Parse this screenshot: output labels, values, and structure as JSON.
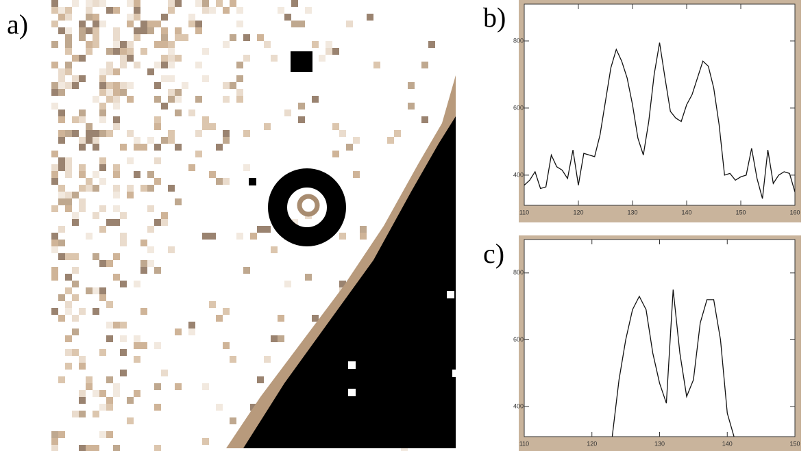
{
  "panel_a": {
    "label": "a)"
  },
  "chart_data": [
    {
      "type": "line",
      "label": "b)",
      "color": "#111111",
      "x": [
        110,
        111,
        112,
        113,
        114,
        115,
        116,
        117,
        118,
        119,
        120,
        121,
        122,
        123,
        124,
        125,
        126,
        127,
        128,
        129,
        130,
        131,
        132,
        133,
        134,
        135,
        136,
        137,
        138,
        139,
        140,
        141,
        142,
        143,
        144,
        145,
        146,
        147,
        148,
        149,
        150,
        151,
        152,
        153,
        154,
        155,
        156,
        157,
        158,
        159,
        160
      ],
      "values": [
        370,
        385,
        410,
        360,
        365,
        460,
        425,
        415,
        390,
        475,
        370,
        465,
        460,
        455,
        520,
        620,
        720,
        775,
        740,
        690,
        610,
        510,
        460,
        560,
        700,
        795,
        690,
        590,
        570,
        560,
        610,
        640,
        690,
        740,
        725,
        660,
        550,
        400,
        405,
        385,
        395,
        400,
        480,
        390,
        330,
        475,
        375,
        400,
        410,
        405,
        350
      ],
      "xlim": [
        110,
        160
      ],
      "xticks": [
        110,
        120,
        130,
        140,
        150,
        160
      ],
      "ylim": [
        310,
        910
      ],
      "yticks": [
        400,
        600,
        800
      ]
    },
    {
      "type": "line",
      "label": "c)",
      "color": "#111111",
      "x": [
        123,
        124,
        125,
        126,
        127,
        128,
        129,
        130,
        131,
        132,
        133,
        134,
        135,
        136,
        137,
        138,
        139,
        140,
        141
      ],
      "values": [
        310,
        480,
        600,
        690,
        730,
        690,
        560,
        470,
        410,
        750,
        560,
        430,
        480,
        650,
        720,
        720,
        600,
        380,
        310
      ],
      "xlim": [
        110,
        150
      ],
      "xticks": [
        110,
        120,
        130,
        140,
        150
      ],
      "ylim": [
        310,
        900
      ],
      "yticks": [
        400,
        600,
        800
      ]
    }
  ]
}
